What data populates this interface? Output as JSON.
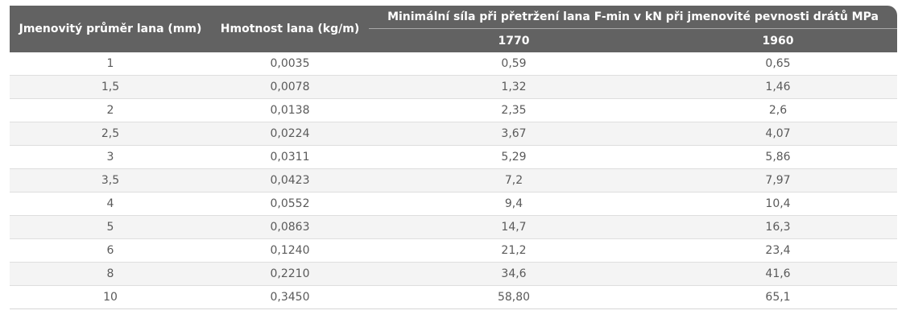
{
  "header": {
    "col_diameter": "Jmenovitý průměr lana (mm)",
    "col_weight": "Hmotnost lana (kg/m)",
    "col_group": "Minimální síla při přetržení lana F-min v kN při jmenovité pevnosti drátů MPa",
    "sub_1770": "1770",
    "sub_1960": "1960"
  },
  "rows": [
    [
      "1",
      "0,0035",
      "0,59",
      "0,65"
    ],
    [
      "1,5",
      "0,0078",
      "1,32",
      "1,46"
    ],
    [
      "2",
      "0,0138",
      "2,35",
      "2,6"
    ],
    [
      "2,5",
      "0,0224",
      "3,67",
      "4,07"
    ],
    [
      "3",
      "0,0311",
      "5,29",
      "5,86"
    ],
    [
      "3,5",
      "0,0423",
      "7,2",
      "7,97"
    ],
    [
      "4",
      "0,0552",
      "9,4",
      "10,4"
    ],
    [
      "5",
      "0,0863",
      "14,7",
      "16,3"
    ],
    [
      "6",
      "0,1240",
      "21,2",
      "23,4"
    ],
    [
      "8",
      "0,2210",
      "34,6",
      "41,6"
    ],
    [
      "10",
      "0,3450",
      "58,80",
      "65,1"
    ]
  ],
  "colors": {
    "header_bg": "#626262",
    "header_text": "#ffffff",
    "stripe": "#f4f4f4",
    "cell_text": "#5a5a5a"
  }
}
